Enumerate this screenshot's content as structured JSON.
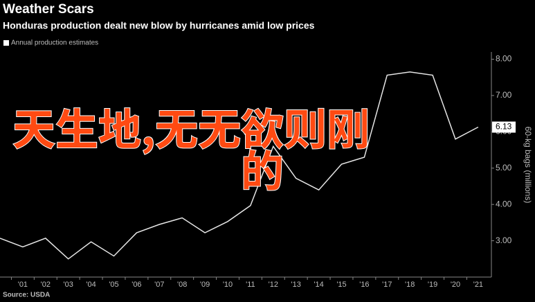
{
  "chart_data": {
    "type": "line",
    "title": "Weather Scars",
    "subtitle": "Honduras production dealt new blow by hurricanes amid low prices",
    "y_axis_label": "60-kg bags (millions)",
    "source": "Source: USDA",
    "annotations": [
      "天生地,无无欲则刚",
      "的"
    ],
    "categories": [
      null,
      "'01",
      "'02",
      "'03",
      "'04",
      "'05",
      "'06",
      "'07",
      "'08",
      "'09",
      "'10",
      "'11",
      "'12",
      "'13",
      "'14",
      "'15",
      "'16",
      "'17",
      "'18",
      "'19",
      "'20",
      "'21"
    ],
    "series": [
      {
        "name": "Annual production estimates",
        "color": "#e6e6e6",
        "values": [
          3.07,
          2.83,
          3.07,
          2.5,
          2.97,
          2.58,
          3.22,
          3.45,
          3.63,
          3.22,
          3.53,
          3.97,
          5.6,
          4.72,
          4.4,
          5.11,
          5.3,
          7.56,
          7.65,
          7.56,
          5.8,
          6.13
        ]
      }
    ],
    "ylim": [
      2,
      8.2
    ],
    "yticks": [
      {
        "value": 3,
        "label": "3.00"
      },
      {
        "value": 4,
        "label": "4.00"
      },
      {
        "value": 5,
        "label": "5.00"
      },
      {
        "value": 6,
        "label": "6.00"
      },
      {
        "value": 7,
        "label": "7.00"
      },
      {
        "value": 8,
        "label": "8.00"
      }
    ],
    "grid": false
  }
}
